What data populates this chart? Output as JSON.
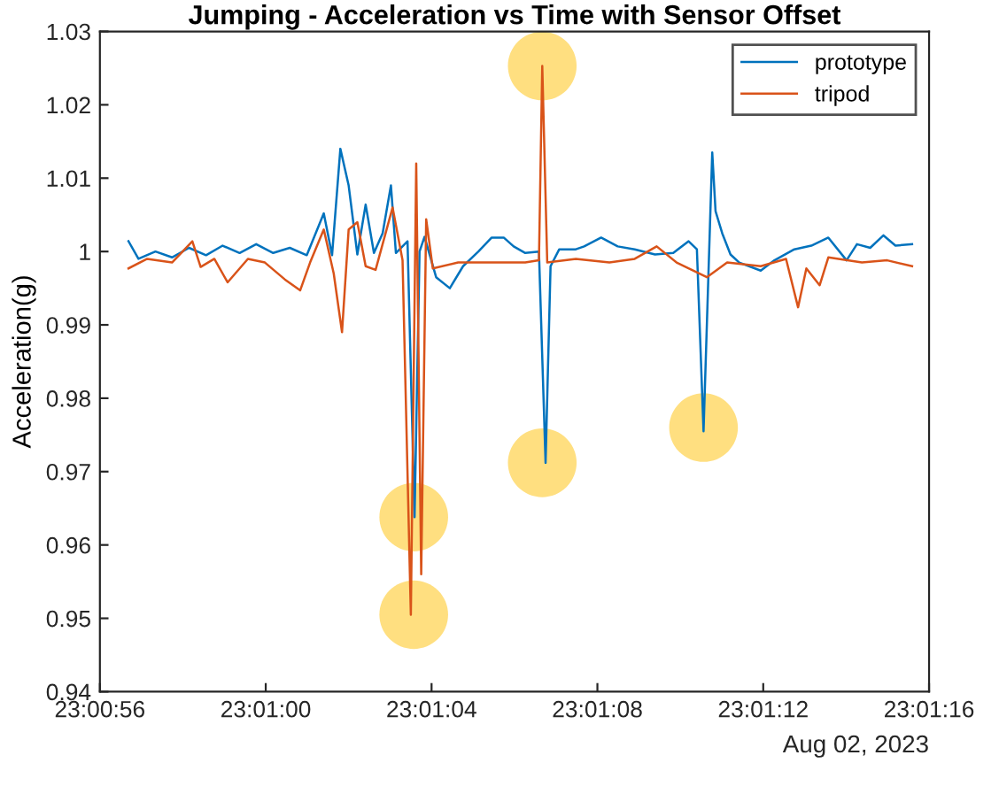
{
  "chart_data": {
    "type": "line",
    "title": "Jumping - Acceleration vs Time with Sensor Offset",
    "ylabel": "Acceleration(g)",
    "annotations": [
      "Aug 02, 2023"
    ],
    "xlim": [
      "2023-08-02T23:00:56",
      "2023-08-02T23:01:16"
    ],
    "xticks": [
      {
        "value": "2023-08-02T23:00:56",
        "label": "23:00:56"
      },
      {
        "value": "2023-08-02T23:01:00",
        "label": "23:01:00"
      },
      {
        "value": "2023-08-02T23:01:04",
        "label": "23:01:04"
      },
      {
        "value": "2023-08-02T23:01:08",
        "label": "23:01:08"
      },
      {
        "value": "2023-08-02T23:01:12",
        "label": "23:01:12"
      },
      {
        "value": "2023-08-02T23:01:16",
        "label": "23:01:16"
      }
    ],
    "ylim": [
      0.94,
      1.03
    ],
    "yticks": [
      0.94,
      0.95,
      0.96,
      0.97,
      0.98,
      0.99,
      1,
      1.01,
      1.02,
      1.03
    ],
    "grid": false,
    "legend": "top right",
    "line_style": "solid",
    "marker": "none",
    "series": [
      {
        "name": "prototype",
        "color": "#0072bd",
        "x": [
          "2023-08-02T23:00:56.69",
          "2023-08-02T23:00:56.93",
          "2023-08-02T23:00:57.34",
          "2023-08-02T23:00:57.74",
          "2023-08-02T23:00:58.15",
          "2023-08-02T23:00:58.56",
          "2023-08-02T23:00:58.96",
          "2023-08-02T23:00:59.37",
          "2023-08-02T23:00:59.77",
          "2023-08-02T23:01:00.18",
          "2023-08-02T23:01:00.58",
          "2023-08-02T23:01:00.99",
          "2023-08-02T23:01:01.40",
          "2023-08-02T23:01:01.60",
          "2023-08-02T23:01:01.80",
          "2023-08-02T23:01:02.00",
          "2023-08-02T23:01:02.21",
          "2023-08-02T23:01:02.41",
          "2023-08-02T23:01:02.61",
          "2023-08-02T23:01:02.82",
          "2023-08-02T23:01:03.02",
          "2023-08-02T23:01:03.14",
          "2023-08-02T23:01:03.42",
          "2023-08-02T23:01:03.59",
          "2023-08-02T23:01:03.71",
          "2023-08-02T23:01:03.83",
          "2023-08-02T23:01:04.11",
          "2023-08-02T23:01:04.44",
          "2023-08-02T23:01:04.76",
          "2023-08-02T23:01:05.13",
          "2023-08-02T23:01:05.45",
          "2023-08-02T23:01:05.74",
          "2023-08-02T23:01:05.98",
          "2023-08-02T23:01:06.26",
          "2023-08-02T23:01:06.59",
          "2023-08-02T23:01:06.75",
          "2023-08-02T23:01:06.87",
          "2023-08-02T23:01:07.08",
          "2023-08-02T23:01:07.48",
          "2023-08-02T23:01:07.68",
          "2023-08-02T23:01:08.09",
          "2023-08-02T23:01:08.49",
          "2023-08-02T23:01:08.90",
          "2023-08-02T23:01:09.39",
          "2023-08-02T23:01:09.83",
          "2023-08-02T23:01:10.20",
          "2023-08-02T23:01:10.40",
          "2023-08-02T23:01:10.56",
          "2023-08-02T23:01:10.77",
          "2023-08-02T23:01:10.85",
          "2023-08-02T23:01:11.01",
          "2023-08-02T23:01:11.21",
          "2023-08-02T23:01:11.42",
          "2023-08-02T23:01:11.94",
          "2023-08-02T23:01:12.27",
          "2023-08-02T23:01:12.75",
          "2023-08-02T23:01:13.16",
          "2023-08-02T23:01:13.57",
          "2023-08-02T23:01:14.01",
          "2023-08-02T23:01:14.26",
          "2023-08-02T23:01:14.58",
          "2023-08-02T23:01:14.90",
          "2023-08-02T23:01:15.19",
          "2023-08-02T23:01:15.59"
        ],
        "values": [
          1.0014,
          0.999,
          1.0,
          0.9992,
          1.0005,
          0.9995,
          1.0008,
          0.9998,
          1.001,
          0.9998,
          1.0005,
          0.9995,
          1.0052,
          0.9995,
          1.014,
          1.009,
          0.9996,
          1.0064,
          0.9998,
          1.0025,
          1.009,
          0.9998,
          1.0014,
          0.9638,
          1.0,
          1.002,
          0.9965,
          0.995,
          0.998,
          1.0,
          1.0019,
          1.0019,
          1.0007,
          0.9998,
          1.0,
          0.9712,
          0.998,
          1.0003,
          1.0003,
          1.0007,
          1.0019,
          1.0007,
          1.0003,
          0.9996,
          0.9998,
          1.0014,
          1.0003,
          0.9755,
          1.0135,
          1.0055,
          1.0025,
          0.9996,
          0.9985,
          0.9974,
          0.9988,
          1.0003,
          1.0008,
          1.0019,
          0.9988,
          1.001,
          1.0005,
          1.0022,
          1.0008,
          1.001
        ]
      },
      {
        "name": "tripod",
        "color": "#d95319",
        "x": [
          "2023-08-02T23:00:56.69",
          "2023-08-02T23:00:57.14",
          "2023-08-02T23:00:57.74",
          "2023-08-02T23:00:58.23",
          "2023-08-02T23:00:58.43",
          "2023-08-02T23:00:58.76",
          "2023-08-02T23:00:59.08",
          "2023-08-02T23:00:59.57",
          "2023-08-02T23:00:59.98",
          "2023-08-02T23:01:00.46",
          "2023-08-02T23:01:00.83",
          "2023-08-02T23:01:01.07",
          "2023-08-02T23:01:01.40",
          "2023-08-02T23:01:01.64",
          "2023-08-02T23:01:01.84",
          "2023-08-02T23:01:02.00",
          "2023-08-02T23:01:02.21",
          "2023-08-02T23:01:02.41",
          "2023-08-02T23:01:02.65",
          "2023-08-02T23:01:03.06",
          "2023-08-02T23:01:03.30",
          "2023-08-02T23:01:03.50",
          "2023-08-02T23:01:03.63",
          "2023-08-02T23:01:03.75",
          "2023-08-02T23:01:03.87",
          "2023-08-02T23:01:04.03",
          "2023-08-02T23:01:04.64",
          "2023-08-02T23:01:05.45",
          "2023-08-02T23:01:06.26",
          "2023-08-02T23:01:06.59",
          "2023-08-02T23:01:06.67",
          "2023-08-02T23:01:06.79",
          "2023-08-02T23:01:07.48",
          "2023-08-02T23:01:08.29",
          "2023-08-02T23:01:08.90",
          "2023-08-02T23:01:09.43",
          "2023-08-02T23:01:09.91",
          "2023-08-02T23:01:10.64",
          "2023-08-02T23:01:11.13",
          "2023-08-02T23:01:11.94",
          "2023-08-02T23:01:12.55",
          "2023-08-02T23:01:12.84",
          "2023-08-02T23:01:13.04",
          "2023-08-02T23:01:13.36",
          "2023-08-02T23:01:13.57",
          "2023-08-02T23:01:14.38",
          "2023-08-02T23:01:14.99",
          "2023-08-02T23:01:15.59"
        ],
        "values": [
          0.9977,
          0.999,
          0.9985,
          1.0014,
          0.9979,
          0.999,
          0.9958,
          0.999,
          0.9985,
          0.9962,
          0.9947,
          0.9985,
          1.003,
          0.997,
          0.989,
          1.003,
          1.004,
          0.998,
          0.9975,
          1.006,
          0.9988,
          0.9505,
          1.012,
          0.956,
          1.0044,
          0.9977,
          0.9985,
          0.9985,
          0.9985,
          0.9988,
          1.0253,
          0.9985,
          0.999,
          0.9985,
          0.999,
          1.0007,
          0.9985,
          0.9965,
          0.9985,
          0.998,
          0.999,
          0.9924,
          0.9977,
          0.9954,
          0.9992,
          0.9985,
          0.9988,
          0.998
        ]
      },
      {
        "type": "scatter",
        "marker": "circle",
        "color": "#ffdf80",
        "x": [
          "2023-08-02T23:01:03.57",
          "2023-08-02T23:01:03.57",
          "2023-08-02T23:01:06.67",
          "2023-08-02T23:01:06.67",
          "2023-08-02T23:01:10.56"
        ],
        "values": [
          0.9638,
          0.9505,
          0.9712,
          1.0253,
          0.976
        ]
      }
    ]
  }
}
